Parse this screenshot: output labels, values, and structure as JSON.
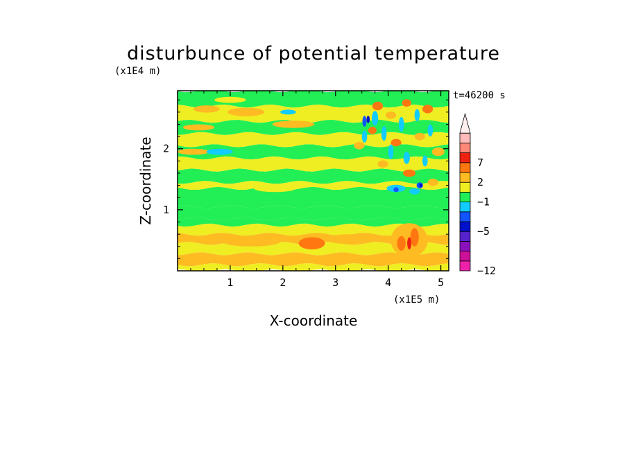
{
  "chart_data": {
    "type": "heatmap",
    "title": "disturbunce of potential temperature",
    "time_label": "t=46200 s",
    "xlabel": "X-coordinate",
    "ylabel": "Z-coordinate",
    "x_unit": "(x1E5 m)",
    "y_unit": "(x1E4 m)",
    "xlim": [
      0,
      5.15
    ],
    "ylim": [
      0,
      2.95
    ],
    "x_ticks": [
      "1",
      "2",
      "3",
      "4",
      "5"
    ],
    "y_ticks": [
      "1",
      "2"
    ],
    "colorbar": {
      "levels": [
        "-12",
        "-5",
        "-1",
        "2",
        "7"
      ],
      "level_values": [
        -12,
        -5,
        -1,
        2,
        7
      ],
      "colors": [
        "#ee22aa",
        "#cc1199",
        "#8811bb",
        "#5522cc",
        "#0011cc",
        "#1155ff",
        "#11ccff",
        "#22ee55",
        "#eeee22",
        "#ffbb22",
        "#ff7711",
        "#ee2211",
        "#ff8877",
        "#ffbbbb"
      ],
      "extend": "max"
    },
    "bands": [
      {
        "z0": 0.0,
        "z1": 0.1,
        "color": "#eeee22"
      },
      {
        "z0": 0.1,
        "z1": 0.28,
        "color": "#ffbb22"
      },
      {
        "z0": 0.28,
        "z1": 0.45,
        "color": "#eeee22"
      },
      {
        "z0": 0.45,
        "z1": 0.6,
        "color": "#ffbb22"
      },
      {
        "z0": 0.6,
        "z1": 0.75,
        "color": "#eeee22"
      },
      {
        "z0": 0.75,
        "z1": 0.85,
        "color": "#22ee55"
      },
      {
        "z0": 0.85,
        "z1": 1.05,
        "color": "#22ee55"
      },
      {
        "z0": 1.05,
        "z1": 1.35,
        "color": "#22ee55"
      },
      {
        "z0": 1.35,
        "z1": 1.45,
        "color": "#eeee22"
      },
      {
        "z0": 1.45,
        "z1": 1.65,
        "color": "#22ee55"
      },
      {
        "z0": 1.65,
        "z1": 1.85,
        "color": "#eeee22"
      },
      {
        "z0": 1.85,
        "z1": 2.05,
        "color": "#22ee55"
      },
      {
        "z0": 2.05,
        "z1": 2.25,
        "color": "#eeee22"
      },
      {
        "z0": 2.25,
        "z1": 2.45,
        "color": "#22ee55"
      },
      {
        "z0": 2.45,
        "z1": 2.7,
        "color": "#eeee22"
      },
      {
        "z0": 2.7,
        "z1": 2.95,
        "color": "#22ee55"
      }
    ],
    "blobs": [
      {
        "x": 0.55,
        "z": 2.65,
        "rx": 0.25,
        "rz": 0.06,
        "color": "#ffbb22"
      },
      {
        "x": 1.3,
        "z": 2.6,
        "rx": 0.35,
        "rz": 0.07,
        "color": "#ffbb22"
      },
      {
        "x": 0.4,
        "z": 2.35,
        "rx": 0.3,
        "rz": 0.05,
        "color": "#ffbb22"
      },
      {
        "x": 2.2,
        "z": 2.4,
        "rx": 0.4,
        "rz": 0.06,
        "color": "#ffbb22"
      },
      {
        "x": 0.3,
        "z": 1.95,
        "rx": 0.3,
        "rz": 0.05,
        "color": "#ffbb22"
      },
      {
        "x": 1.0,
        "z": 2.8,
        "rx": 0.3,
        "rz": 0.05,
        "color": "#eeee22"
      },
      {
        "x": 0.8,
        "z": 1.95,
        "rx": 0.25,
        "rz": 0.05,
        "color": "#11ccff"
      },
      {
        "x": 2.1,
        "z": 2.6,
        "rx": 0.15,
        "rz": 0.04,
        "color": "#11ccff"
      },
      {
        "x": 1.85,
        "z": 1.35,
        "rx": 0.4,
        "rz": 0.06,
        "color": "#eeee22"
      },
      {
        "x": 2.55,
        "z": 0.45,
        "rx": 0.25,
        "rz": 0.1,
        "color": "#ff7711"
      },
      {
        "x": 1.4,
        "z": 0.48,
        "rx": 0.55,
        "rz": 0.08,
        "color": "#ffbb22"
      },
      {
        "x": 3.3,
        "z": 0.52,
        "rx": 0.5,
        "rz": 0.08,
        "color": "#ffbb22"
      },
      {
        "x": 4.4,
        "z": 0.5,
        "rx": 0.35,
        "rz": 0.28,
        "color": "#ffbb22"
      },
      {
        "x": 4.5,
        "z": 0.55,
        "rx": 0.08,
        "rz": 0.15,
        "color": "#ff7711"
      },
      {
        "x": 4.25,
        "z": 0.45,
        "rx": 0.08,
        "rz": 0.12,
        "color": "#ff7711"
      },
      {
        "x": 3.8,
        "z": 2.7,
        "rx": 0.1,
        "rz": 0.07,
        "color": "#ff7711"
      },
      {
        "x": 4.05,
        "z": 2.55,
        "rx": 0.1,
        "rz": 0.06,
        "color": "#ffbb22"
      },
      {
        "x": 4.35,
        "z": 2.75,
        "rx": 0.09,
        "rz": 0.06,
        "color": "#ff7711"
      },
      {
        "x": 4.75,
        "z": 2.65,
        "rx": 0.1,
        "rz": 0.07,
        "color": "#ff7711"
      },
      {
        "x": 3.7,
        "z": 2.3,
        "rx": 0.08,
        "rz": 0.06,
        "color": "#ff7711"
      },
      {
        "x": 4.15,
        "z": 2.1,
        "rx": 0.1,
        "rz": 0.06,
        "color": "#ff7711"
      },
      {
        "x": 4.6,
        "z": 2.2,
        "rx": 0.1,
        "rz": 0.06,
        "color": "#ffbb22"
      },
      {
        "x": 3.45,
        "z": 2.05,
        "rx": 0.1,
        "rz": 0.06,
        "color": "#ffbb22"
      },
      {
        "x": 4.95,
        "z": 1.95,
        "rx": 0.12,
        "rz": 0.07,
        "color": "#ffbb22"
      },
      {
        "x": 3.9,
        "z": 1.75,
        "rx": 0.1,
        "rz": 0.06,
        "color": "#ffbb22"
      },
      {
        "x": 4.4,
        "z": 1.6,
        "rx": 0.12,
        "rz": 0.06,
        "color": "#ff7711"
      },
      {
        "x": 4.85,
        "z": 1.45,
        "rx": 0.1,
        "rz": 0.06,
        "color": "#ffbb22"
      },
      {
        "x": 3.75,
        "z": 2.5,
        "rx": 0.06,
        "rz": 0.12,
        "color": "#11ccff"
      },
      {
        "x": 3.92,
        "z": 2.25,
        "rx": 0.05,
        "rz": 0.12,
        "color": "#11ccff"
      },
      {
        "x": 4.25,
        "z": 2.4,
        "rx": 0.05,
        "rz": 0.12,
        "color": "#11ccff"
      },
      {
        "x": 4.55,
        "z": 2.55,
        "rx": 0.05,
        "rz": 0.1,
        "color": "#11ccff"
      },
      {
        "x": 4.8,
        "z": 2.3,
        "rx": 0.05,
        "rz": 0.1,
        "color": "#11ccff"
      },
      {
        "x": 3.55,
        "z": 2.2,
        "rx": 0.05,
        "rz": 0.1,
        "color": "#11ccff"
      },
      {
        "x": 4.05,
        "z": 1.95,
        "rx": 0.05,
        "rz": 0.12,
        "color": "#11ccff"
      },
      {
        "x": 4.35,
        "z": 1.85,
        "rx": 0.06,
        "rz": 0.1,
        "color": "#11ccff"
      },
      {
        "x": 4.7,
        "z": 1.8,
        "rx": 0.05,
        "rz": 0.09,
        "color": "#11ccff"
      },
      {
        "x": 4.15,
        "z": 1.35,
        "rx": 0.18,
        "rz": 0.06,
        "color": "#11ccff"
      },
      {
        "x": 4.5,
        "z": 1.3,
        "rx": 0.1,
        "rz": 0.05,
        "color": "#11ccff"
      },
      {
        "x": 3.55,
        "z": 2.45,
        "rx": 0.04,
        "rz": 0.09,
        "color": "#1155ff"
      },
      {
        "x": 4.6,
        "z": 1.4,
        "rx": 0.06,
        "rz": 0.05,
        "color": "#1155ff"
      },
      {
        "x": 4.15,
        "z": 1.33,
        "rx": 0.05,
        "rz": 0.04,
        "color": "#1155ff"
      },
      {
        "x": 3.62,
        "z": 2.48,
        "rx": 0.03,
        "rz": 0.06,
        "color": "#0011cc"
      },
      {
        "x": 4.62,
        "z": 1.4,
        "rx": 0.03,
        "rz": 0.03,
        "color": "#0011cc"
      },
      {
        "x": 4.4,
        "z": 0.45,
        "rx": 0.04,
        "rz": 0.1,
        "color": "#ee2211"
      }
    ]
  }
}
